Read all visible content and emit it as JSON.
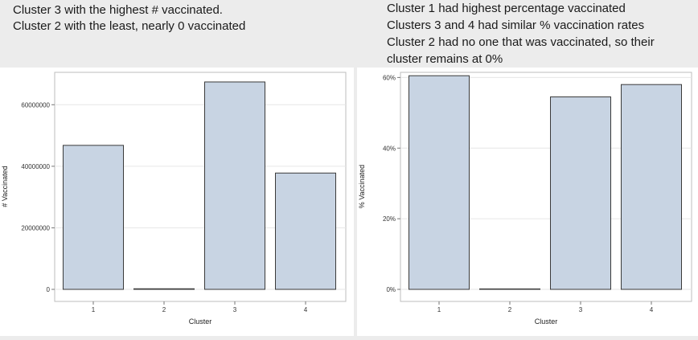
{
  "notes": {
    "left": [
      "Cluster 3 with the highest # vaccinated.",
      "Cluster 2 with the least, nearly 0 vaccinated"
    ],
    "right": [
      "Cluster 1 had highest percentage vaccinated",
      "Clusters 3 and 4 had similar % vaccination rates",
      "Cluster 2 had no one that was vaccinated, so their",
      "cluster remains at 0%"
    ]
  },
  "colors": {
    "bar_fill": "#c8d4e3",
    "bar_stroke": "#3a3a3a",
    "grid": "#e6e6e6",
    "frame": "#bdbdbd"
  },
  "chart_data": [
    {
      "type": "bar",
      "categories": [
        "1",
        "2",
        "3",
        "4"
      ],
      "values": [
        46800000,
        200000,
        67400000,
        37800000
      ],
      "xlabel": "Cluster",
      "ylabel": "# Vaccinated",
      "ylim": [
        0,
        70000000
      ],
      "yticks": [
        0,
        20000000,
        40000000,
        60000000
      ],
      "yticklabels": [
        "0",
        "20000000",
        "40000000",
        "60000000"
      ],
      "grid": true
    },
    {
      "type": "bar",
      "categories": [
        "1",
        "2",
        "3",
        "4"
      ],
      "values": [
        60.5,
        0,
        54.5,
        58
      ],
      "xlabel": "Cluster",
      "ylabel": "% Vaccinated",
      "ylim": [
        0,
        61
      ],
      "yticks": [
        0,
        20,
        40,
        60
      ],
      "yticklabels": [
        "0%",
        "20%",
        "40%",
        "60%"
      ],
      "grid": true
    }
  ]
}
